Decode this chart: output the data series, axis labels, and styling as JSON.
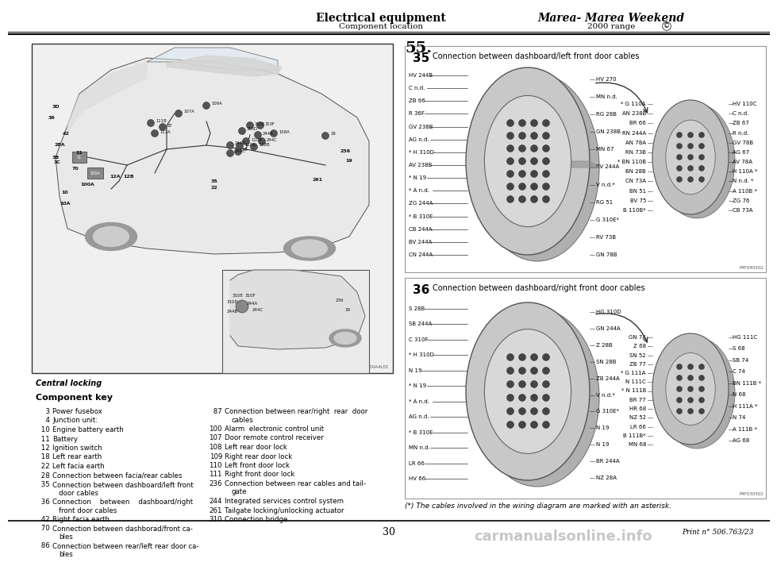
{
  "title_left": "Electrical equipment",
  "title_right": "Marea- Marea Weekend",
  "subtitle_left": "Component location",
  "subtitle_right": "2000 range",
  "copyright_symbol": "©",
  "page_number": "30",
  "print_number": "Print n° 506.763/23",
  "section_number": "55.",
  "section_label_35": "35",
  "section_label_36": "36",
  "section_title_35": "Connection between dashboard/left front door cables",
  "section_title_36": "Connection between dashboard/right front door cables",
  "central_locking_title": "Central locking",
  "component_key_title": "Component key",
  "footnote": "(*) The cables involved in the wiring diagram are marked with an asterisk.",
  "watermark": "carmanualsonline.info",
  "diagram35_ref": "P4F040502",
  "diagram36_ref": "P4F030502",
  "car_ref": "4PE00A4L01",
  "left_col_items": [
    [
      "3",
      "Power fusebox"
    ],
    [
      "4",
      "Junction unit:"
    ],
    [
      "10",
      "Engine battery earth"
    ],
    [
      "11",
      "Battery"
    ],
    [
      "12",
      "Ignition switch"
    ],
    [
      "18",
      "Left rear earth"
    ],
    [
      "22",
      "Left facia earth"
    ],
    [
      "28",
      "Connection between facia/rear cables"
    ],
    [
      "35",
      "Connection between dashboard/left front\ndoor cables"
    ],
    [
      "36",
      "Connection    between    dashboard/right\nfront door cables"
    ],
    [
      "42",
      "Right facia earth"
    ],
    [
      "70",
      "Connection between dashborad/front ca-\nbles"
    ],
    [
      "86",
      "Connection between rear/left rear door ca-\nbles"
    ]
  ],
  "right_col_items": [
    [
      "87",
      "Connection between rear/right  rear  door\ncables"
    ],
    [
      "100",
      "Alarm  electronic control unit"
    ],
    [
      "107",
      "Door remote control receiver"
    ],
    [
      "108",
      "Left rear door lock"
    ],
    [
      "109",
      "Right rear door lock"
    ],
    [
      "110",
      "Left front door lock"
    ],
    [
      "111",
      "Right front door lock"
    ],
    [
      "236",
      "Connection between rear cables and tail-\ngate"
    ],
    [
      "244",
      "Integrated services control system"
    ],
    [
      "261",
      "Tailgate locking/unlocking actuator"
    ],
    [
      "310",
      "Connection bridge"
    ]
  ],
  "d35_left_labels": [
    "HV 244B",
    "C n.d.",
    "ZB 66",
    "R 36F",
    "GV 238B",
    "AG n.d.",
    "* H 310D",
    "AV 238B",
    "* N 19",
    "* A n.d.",
    "ZG 244A",
    "* B 310E",
    "CB 244A",
    "BV 244A",
    "CN 244A"
  ],
  "d35_mid_labels_l": [
    "HV 270",
    "MN n.d.",
    "RG 28B",
    "GN 238B",
    "MN 67",
    "RV 244A",
    "V n.d.*",
    "RG 51",
    "G 310E*",
    "RV 73B",
    "GN 78B"
  ],
  "d35_mid_labels_r": [
    "* G 110A",
    "AN 238B",
    "BR 66",
    "RN 244A",
    "AN 78A",
    "RN 73B",
    "* BN 110B",
    "BN 28B",
    "CN 73A",
    "BN 51",
    "BV 75",
    "B 110B*"
  ],
  "d35_right_labels": [
    "HV 110C",
    "C n.d.",
    "ZB 67",
    "R n.d.",
    "GV 78B",
    "AG 67",
    "AV 78A",
    "H 110A *",
    "N n.d. *",
    "A 110B *",
    "ZG 76",
    "CB 73A"
  ],
  "d36_left_labels": [
    "S 28B",
    "SB 244A",
    "C 310F",
    "* H 310D",
    "N 19",
    "* N 19",
    "* A n.d.",
    "AG n.d.",
    "* B 310E",
    "MN n.d.",
    "LR 66",
    "HV 66"
  ],
  "d36_mid_labels_l": [
    "HG 310D",
    "GN 244A",
    "Z 28B",
    "SN 28B",
    "ZB 244A",
    "V n.d.*",
    "G 310E*",
    "N 19",
    "N 19",
    "BR 244A",
    "NZ 28A"
  ],
  "d36_mid_labels_r": [
    "GN 74",
    "Z 68",
    "SN 52",
    "ZB 77",
    "* G 111A",
    "N 111C",
    "* N 111B",
    "BR 77",
    "HR 68",
    "NZ 52",
    "LR 66",
    "B 111B*",
    "MN 68"
  ],
  "d36_right_labels": [
    "HG 111C",
    "S 68",
    "SB 74",
    "C 74",
    "BN 111B *",
    "N 68",
    "H 111A *",
    "N 74",
    "A 111B *",
    "AG 68"
  ],
  "bg_color": "#ffffff",
  "text_color": "#000000"
}
